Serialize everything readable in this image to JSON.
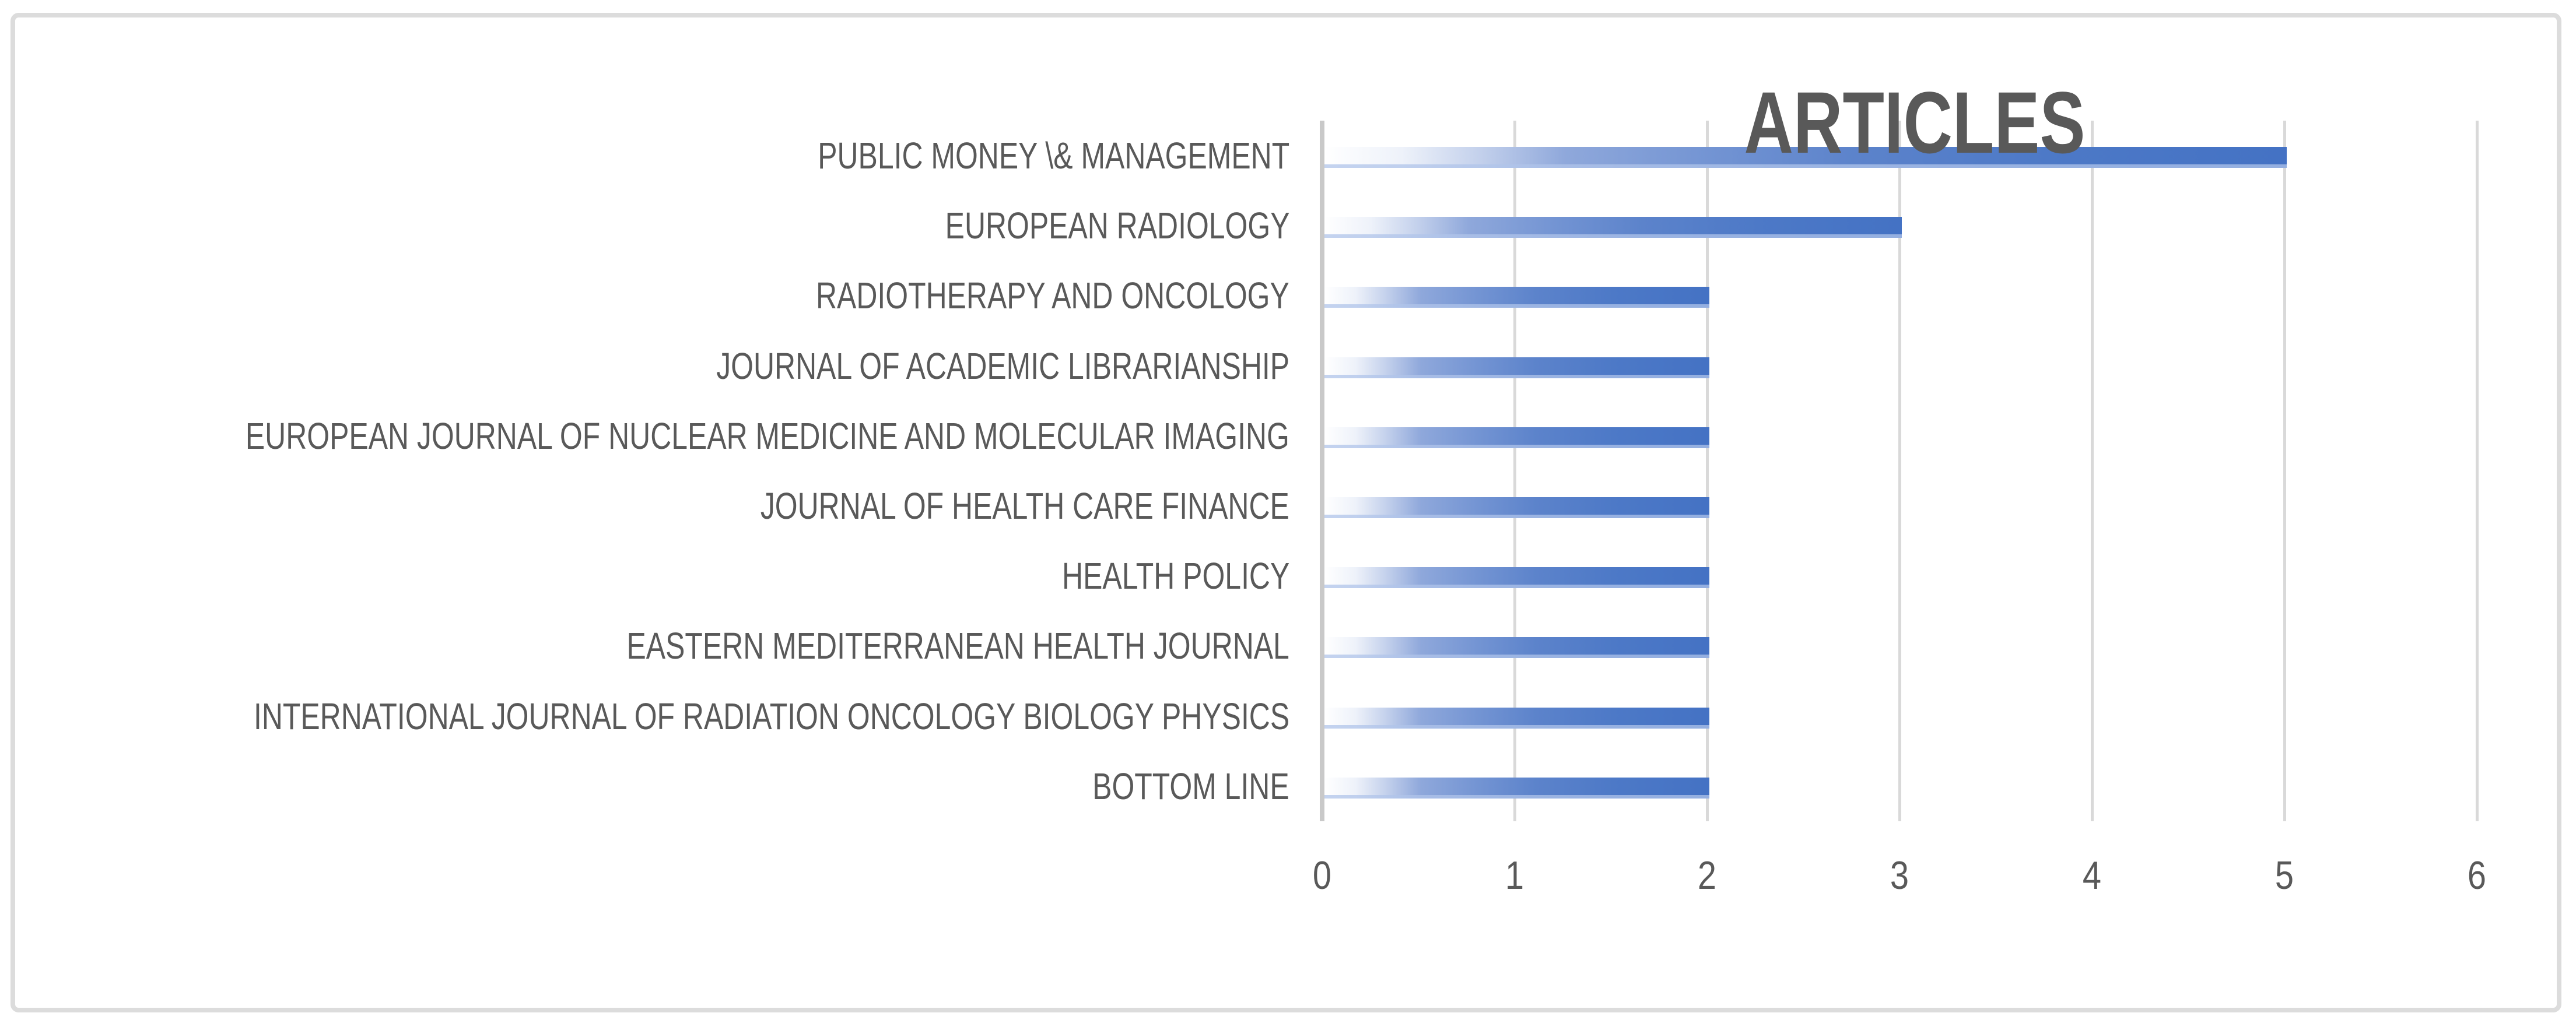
{
  "chart_data": {
    "type": "bar",
    "orientation": "horizontal",
    "title": "ARTICLES",
    "categories": [
      "PUBLIC MONEY \\& MANAGEMENT",
      "EUROPEAN RADIOLOGY",
      "RADIOTHERAPY AND ONCOLOGY",
      "JOURNAL OF ACADEMIC LIBRARIANSHIP",
      "EUROPEAN JOURNAL OF NUCLEAR MEDICINE AND MOLECULAR IMAGING",
      "JOURNAL OF HEALTH CARE FINANCE",
      "HEALTH POLICY",
      "EASTERN MEDITERRANEAN HEALTH JOURNAL",
      "INTERNATIONAL JOURNAL OF RADIATION ONCOLOGY BIOLOGY PHYSICS",
      "BOTTOM LINE"
    ],
    "values": [
      5,
      3,
      2,
      2,
      2,
      2,
      2,
      2,
      2,
      2
    ],
    "xlabel": "",
    "ylabel": "",
    "xlim": [
      0,
      6
    ],
    "x_ticks": [
      0,
      1,
      2,
      3,
      4,
      5,
      6
    ],
    "grid": true,
    "legend": false,
    "colors": {
      "bar_solid": "#4472C4",
      "bar_gradient_start": "#FFFFFF",
      "bar_bottom_edge": "#B0C4E9",
      "text": "#595959",
      "gridline": "#D9D9D9",
      "frame_border": "#DCDCDC",
      "background": "#FFFFFF"
    }
  }
}
